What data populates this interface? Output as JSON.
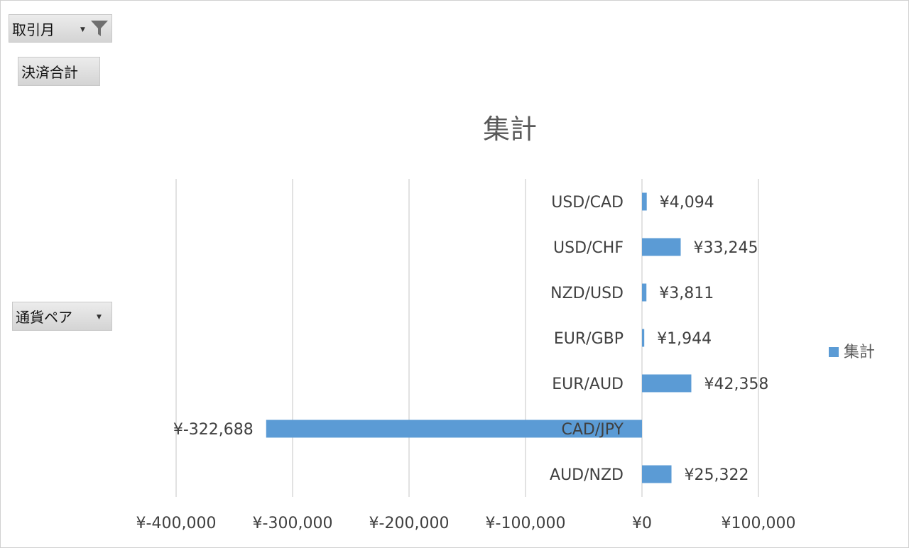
{
  "pivot": {
    "filter_field": "取引月",
    "values_field": "決済合計",
    "row_field": "通貨ペア"
  },
  "legend": {
    "label": "集計"
  },
  "colors": {
    "bar": "#5b9bd5",
    "grid": "#d9d9d9",
    "title": "#595959",
    "label": "#404040"
  },
  "chart_data": {
    "type": "bar",
    "orientation": "horizontal",
    "title": "集計",
    "categories": [
      "AUD/NZD",
      "CAD/JPY",
      "EUR/AUD",
      "EUR/GBP",
      "NZD/USD",
      "USD/CHF",
      "USD/CAD"
    ],
    "series": [
      {
        "name": "集計",
        "values": [
          25322,
          -322688,
          42358,
          1944,
          3811,
          33245,
          4094
        ]
      }
    ],
    "data_labels": [
      "¥25,322",
      "¥-322,688",
      "¥42,358",
      "¥1,944",
      "¥3,811",
      "¥33,245",
      "¥4,094"
    ],
    "xlim": [
      -400000,
      100000
    ],
    "x_ticks": [
      -400000,
      -300000,
      -200000,
      -100000,
      0,
      100000
    ],
    "x_tick_labels": [
      "¥-400,000",
      "¥-300,000",
      "¥-200,000",
      "¥-100,000",
      "¥0",
      "¥100,000"
    ],
    "grid": true,
    "legend_position": "right"
  }
}
